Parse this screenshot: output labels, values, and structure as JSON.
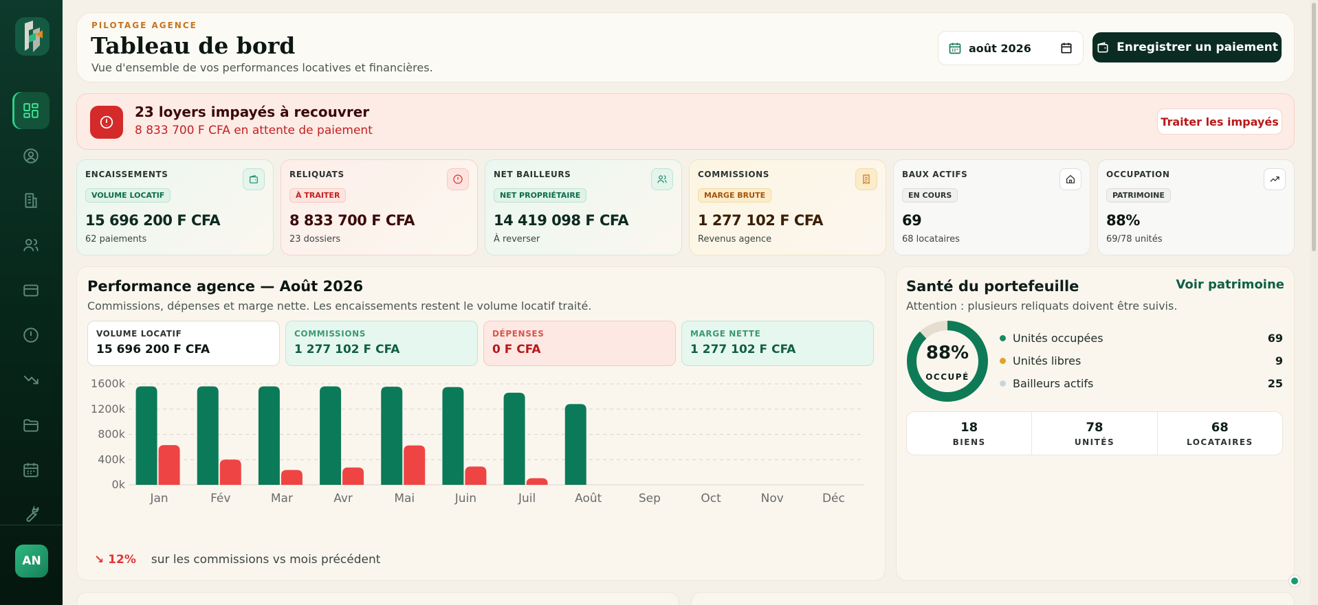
{
  "sidebar": {
    "items": [
      {
        "icon": "dashboard-icon",
        "active": true
      },
      {
        "icon": "user-icon"
      },
      {
        "icon": "building-icon"
      },
      {
        "icon": "users-icon"
      },
      {
        "icon": "card-icon"
      },
      {
        "icon": "alert-icon"
      },
      {
        "icon": "trend-down-icon"
      },
      {
        "icon": "folder-icon"
      },
      {
        "icon": "calendar-icon"
      },
      {
        "icon": "wrench-icon"
      }
    ],
    "avatar": "AN"
  },
  "header": {
    "eyebrow": "PILOTAGE AGENCE",
    "title": "Tableau de bord",
    "subtitle": "Vue d'ensemble de vos performances locatives et financières.",
    "date": "août 2026",
    "pay_button": "Enregistrer un paiement"
  },
  "alert": {
    "title": "23 loyers impayés à recouvrer",
    "subtitle": "8 833 700 F CFA en attente de paiement",
    "button": "Traiter les impayés"
  },
  "kpis": [
    {
      "label": "ENCAISSEMENTS",
      "badge": "VOLUME LOCATIF",
      "value": "15 696 200 F CFA",
      "sub": "62 paiements"
    },
    {
      "label": "RELIQUATS",
      "badge": "À TRAITER",
      "value": "8 833 700 F CFA",
      "sub": "23 dossiers"
    },
    {
      "label": "NET BAILLEURS",
      "badge": "NET PROPRIÉTAIRE",
      "value": "14 419 098 F CFA",
      "sub": "À reverser"
    },
    {
      "label": "COMMISSIONS",
      "badge": "MARGE BRUTE",
      "value": "1 277 102 F CFA",
      "sub": "Revenus agence"
    },
    {
      "label": "BAUX ACTIFS",
      "badge": "EN COURS",
      "value": "69",
      "sub": "68 locataires"
    },
    {
      "label": "OCCUPATION",
      "badge": "PATRIMOINE",
      "value": "88%",
      "sub": "69/78 unités"
    }
  ],
  "performance": {
    "title": "Performance agence — Août 2026",
    "subtitle": "Commissions, dépenses et marge nette. Les encaissements restent le volume locatif traité.",
    "boxes": [
      {
        "label": "VOLUME LOCATIF",
        "value": "15 696 200 F CFA"
      },
      {
        "label": "COMMISSIONS",
        "value": "1 277 102 F CFA"
      },
      {
        "label": "DÉPENSES",
        "value": "0 F CFA"
      },
      {
        "label": "MARGE NETTE",
        "value": "1 277 102 F CFA"
      }
    ],
    "delta": "↘ 12%",
    "delta_text": "sur les commissions vs mois précédent"
  },
  "chart_data": {
    "type": "bar",
    "categories": [
      "Jan",
      "Fév",
      "Mar",
      "Avr",
      "Mai",
      "Juin",
      "Juil",
      "Août",
      "Sep",
      "Oct",
      "Nov",
      "Déc"
    ],
    "y_ticks": [
      "0k",
      "400k",
      "800k",
      "1200k",
      "1600k"
    ],
    "ylim": [
      0,
      1600000
    ],
    "series": [
      {
        "color": "#0b7a58",
        "values": [
          1560000,
          1560000,
          1560000,
          1560000,
          1555000,
          1550000,
          1460000,
          1280000,
          0,
          0,
          0,
          0
        ]
      },
      {
        "color": "#ef4444",
        "values": [
          630000,
          400000,
          235000,
          275000,
          625000,
          290000,
          105000,
          0,
          0,
          0,
          0,
          0
        ]
      }
    ],
    "grid": true
  },
  "portfolio": {
    "title": "Santé du portefeuille",
    "link": "Voir patrimoine",
    "subtitle": "Attention : plusieurs reliquats doivent être suivis.",
    "occupancy": "88%",
    "occupancy_fraction": 0.88,
    "occupancy_label": "OCCUPÉ",
    "legend": [
      {
        "name": "Unités occupées",
        "value": "69",
        "color": "#1a8a62"
      },
      {
        "name": "Unités libres",
        "value": "9",
        "color": "#e0a326"
      },
      {
        "name": "Bailleurs actifs",
        "value": "25",
        "color": "#c8d6dc"
      }
    ],
    "stats": [
      {
        "value": "18",
        "label": "BIENS"
      },
      {
        "value": "78",
        "label": "UNITÉS"
      },
      {
        "value": "68",
        "label": "LOCATAIRES"
      }
    ]
  }
}
